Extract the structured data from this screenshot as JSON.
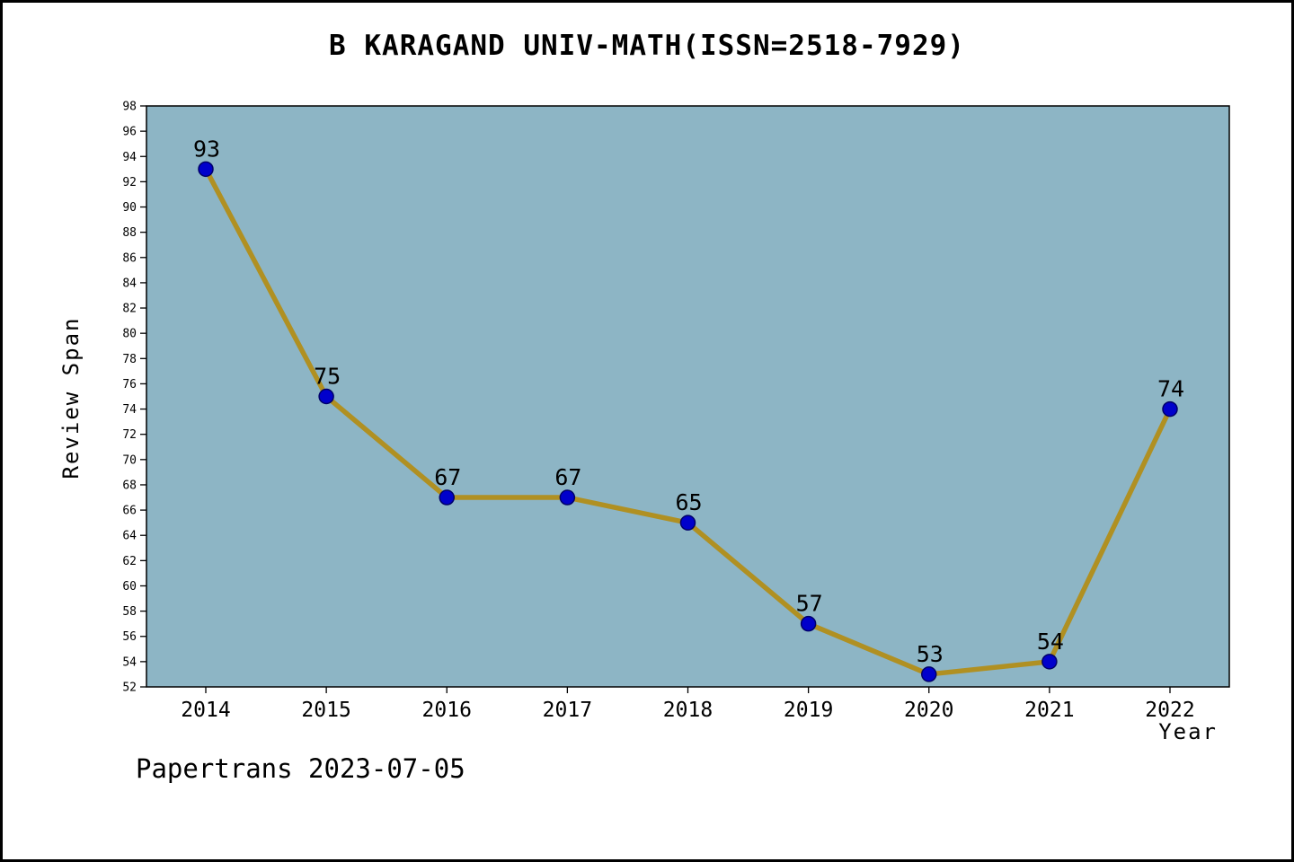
{
  "title": "B KARAGAND UNIV-MATH(ISSN=2518-7929)",
  "footer": "Papertrans 2023-07-05",
  "chart_data": {
    "type": "line",
    "title": "B KARAGAND UNIV-MATH(ISSN=2518-7929)",
    "xlabel": "Year",
    "ylabel": "Review Span",
    "x": [
      2014,
      2015,
      2016,
      2017,
      2018,
      2019,
      2020,
      2021,
      2022
    ],
    "values": [
      93,
      75,
      67,
      67,
      65,
      57,
      53,
      54,
      74
    ],
    "ylim": [
      52,
      98
    ],
    "ytick_step": 2,
    "grid": false,
    "legend": null,
    "colors": {
      "line": "#b09022",
      "marker": "#0000cc",
      "marker_edge": "#00006a",
      "plot_bg": "#8db5c5",
      "axis": "#000000"
    }
  }
}
